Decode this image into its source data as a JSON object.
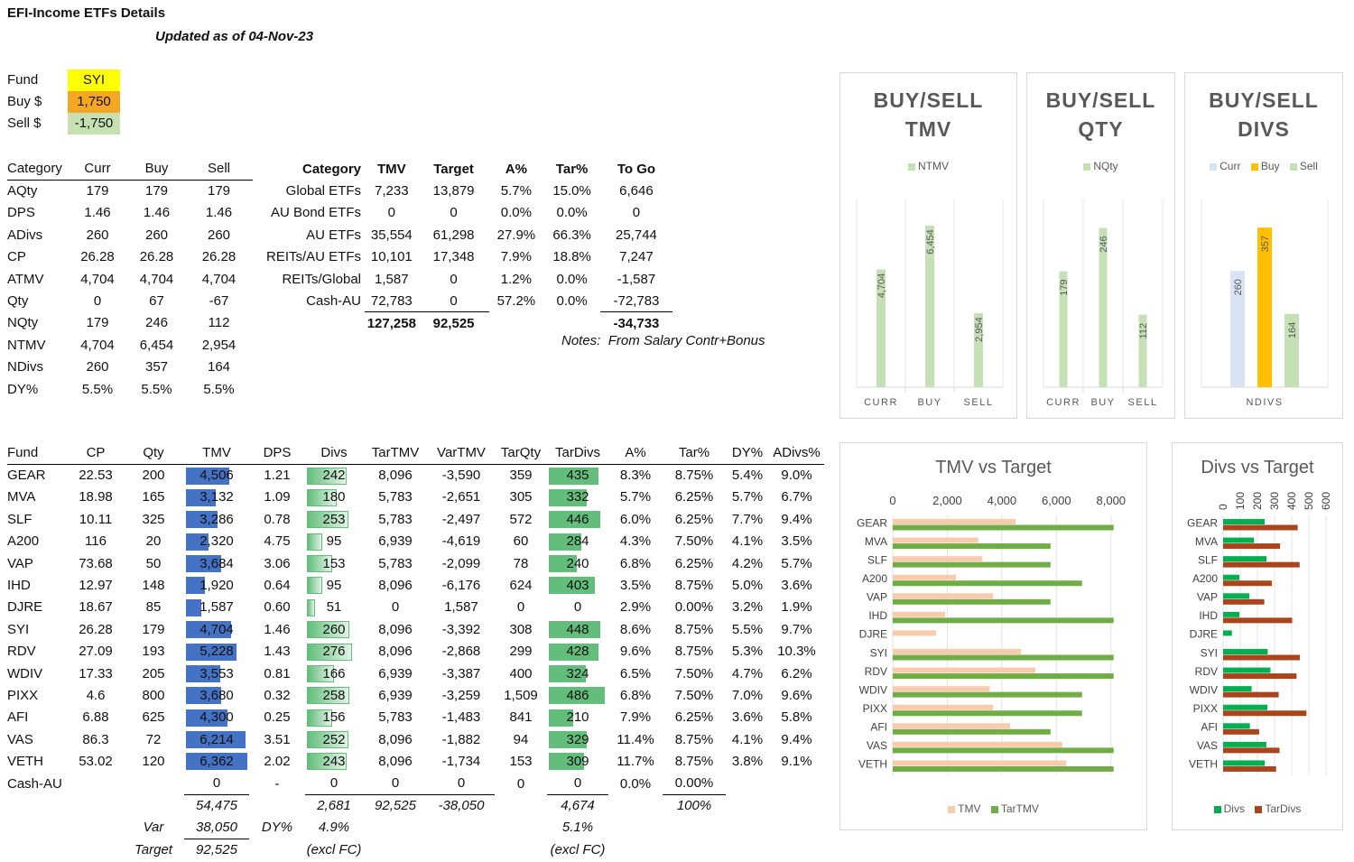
{
  "header": {
    "title": "EFI-Income ETFs Details",
    "updated": "Updated as of  04-Nov-23"
  },
  "selector": {
    "fund_label": "Fund",
    "fund_value": "SYI",
    "buy_label": "Buy $",
    "buy_value": "1,750",
    "sell_label": "Sell $",
    "sell_value": "-1,750",
    "colors": {
      "fund": "#ffff00",
      "buy": "#f5a623",
      "sell": "#c6e0b4"
    }
  },
  "category_table": {
    "headers": [
      "Category",
      "Curr",
      "Buy",
      "Sell"
    ],
    "rows": [
      [
        "AQty",
        "179",
        "179",
        "179"
      ],
      [
        "DPS",
        "1.46",
        "1.46",
        "1.46"
      ],
      [
        "ADivs",
        "260",
        "260",
        "260"
      ],
      [
        "CP",
        "26.28",
        "26.28",
        "26.28"
      ],
      [
        "ATMV",
        "4,704",
        "4,704",
        "4,704"
      ],
      [
        "Qty",
        "0",
        "67",
        "-67"
      ],
      [
        "NQty",
        "179",
        "246",
        "112"
      ],
      [
        "NTMV",
        "4,704",
        "6,454",
        "2,954"
      ],
      [
        "NDivs",
        "260",
        "357",
        "164"
      ],
      [
        "DY%",
        "5.5%",
        "5.5%",
        "5.5%"
      ]
    ]
  },
  "alloc_table": {
    "headers": [
      "Category",
      "TMV",
      "Target",
      "A%",
      "Tar%",
      "To Go"
    ],
    "rows": [
      [
        "Global ETFs",
        "7,233",
        "13,879",
        "5.7%",
        "15.0%",
        "6,646"
      ],
      [
        "AU Bond ETFs",
        "0",
        "0",
        "0.0%",
        "0.0%",
        "0"
      ],
      [
        "AU ETFs",
        "35,554",
        "61,298",
        "27.9%",
        "66.3%",
        "25,744"
      ],
      [
        "REITs/AU ETFs",
        "10,101",
        "17,348",
        "7.9%",
        "18.8%",
        "7,247"
      ],
      [
        "REITs/Global",
        "1,587",
        "0",
        "1.2%",
        "0.0%",
        "-1,587"
      ],
      [
        "Cash-AU",
        "72,783",
        "0",
        "57.2%",
        "0.0%",
        "-72,783"
      ]
    ],
    "totals": {
      "tmv": "127,258",
      "target": "92,525",
      "togo": "-34,733"
    },
    "notes_label": "Notes:",
    "notes_text": "From Salary Contr+Bonus"
  },
  "fund_table": {
    "headers": [
      "Fund",
      "CP",
      "Qty",
      "TMV",
      "DPS",
      "Divs",
      "TarTMV",
      "VarTMV",
      "TarQty",
      "TarDivs",
      "A%",
      "Tar%",
      "DY%",
      "ADivs%"
    ],
    "rows": [
      {
        "fund": "GEAR",
        "cp": "22.53",
        "qty": "200",
        "tmv": "4,506",
        "tmv_v": 4506,
        "dps": "1.21",
        "divs": "242",
        "divs_v": 242,
        "tartmv": "8,096",
        "vartmv": "-3,590",
        "tarqty": "359",
        "tardivs": "435",
        "tardivs_v": 435,
        "a": "8.3%",
        "tar": "8.75%",
        "dy": "5.4%",
        "adivs": "9.0%"
      },
      {
        "fund": "MVA",
        "cp": "18.98",
        "qty": "165",
        "tmv": "3,132",
        "tmv_v": 3132,
        "dps": "1.09",
        "divs": "180",
        "divs_v": 180,
        "tartmv": "5,783",
        "vartmv": "-2,651",
        "tarqty": "305",
        "tardivs": "332",
        "tardivs_v": 332,
        "a": "5.7%",
        "tar": "6.25%",
        "dy": "5.7%",
        "adivs": "6.7%"
      },
      {
        "fund": "SLF",
        "cp": "10.11",
        "qty": "325",
        "tmv": "3,286",
        "tmv_v": 3286,
        "dps": "0.78",
        "divs": "253",
        "divs_v": 253,
        "tartmv": "5,783",
        "vartmv": "-2,497",
        "tarqty": "572",
        "tardivs": "446",
        "tardivs_v": 446,
        "a": "6.0%",
        "tar": "6.25%",
        "dy": "7.7%",
        "adivs": "9.4%"
      },
      {
        "fund": "A200",
        "cp": "116",
        "qty": "20",
        "tmv": "2,320",
        "tmv_v": 2320,
        "dps": "4.75",
        "divs": "95",
        "divs_v": 95,
        "tartmv": "6,939",
        "vartmv": "-4,619",
        "tarqty": "60",
        "tardivs": "284",
        "tardivs_v": 284,
        "a": "4.3%",
        "tar": "7.50%",
        "dy": "4.1%",
        "adivs": "3.5%"
      },
      {
        "fund": "VAP",
        "cp": "73.68",
        "qty": "50",
        "tmv": "3,684",
        "tmv_v": 3684,
        "dps": "3.06",
        "divs": "153",
        "divs_v": 153,
        "tartmv": "5,783",
        "vartmv": "-2,099",
        "tarqty": "78",
        "tardivs": "240",
        "tardivs_v": 240,
        "a": "6.8%",
        "tar": "6.25%",
        "dy": "4.2%",
        "adivs": "5.7%"
      },
      {
        "fund": "IHD",
        "cp": "12.97",
        "qty": "148",
        "tmv": "1,920",
        "tmv_v": 1920,
        "dps": "0.64",
        "divs": "95",
        "divs_v": 95,
        "tartmv": "8,096",
        "vartmv": "-6,176",
        "tarqty": "624",
        "tardivs": "403",
        "tardivs_v": 403,
        "a": "3.5%",
        "tar": "8.75%",
        "dy": "5.0%",
        "adivs": "3.6%"
      },
      {
        "fund": "DJRE",
        "cp": "18.67",
        "qty": "85",
        "tmv": "1,587",
        "tmv_v": 1587,
        "dps": "0.60",
        "divs": "51",
        "divs_v": 51,
        "tartmv": "0",
        "vartmv": "1,587",
        "tarqty": "0",
        "tardivs": "0",
        "tardivs_v": 0,
        "a": "2.9%",
        "tar": "0.00%",
        "dy": "3.2%",
        "adivs": "1.9%"
      },
      {
        "fund": "SYI",
        "cp": "26.28",
        "qty": "179",
        "tmv": "4,704",
        "tmv_v": 4704,
        "dps": "1.46",
        "divs": "260",
        "divs_v": 260,
        "tartmv": "8,096",
        "vartmv": "-3,392",
        "tarqty": "308",
        "tardivs": "448",
        "tardivs_v": 448,
        "a": "8.6%",
        "tar": "8.75%",
        "dy": "5.5%",
        "adivs": "9.7%"
      },
      {
        "fund": "RDV",
        "cp": "27.09",
        "qty": "193",
        "tmv": "5,228",
        "tmv_v": 5228,
        "dps": "1.43",
        "divs": "276",
        "divs_v": 276,
        "tartmv": "8,096",
        "vartmv": "-2,868",
        "tarqty": "299",
        "tardivs": "428",
        "tardivs_v": 428,
        "a": "9.6%",
        "tar": "8.75%",
        "dy": "5.3%",
        "adivs": "10.3%"
      },
      {
        "fund": "WDIV",
        "cp": "17.33",
        "qty": "205",
        "tmv": "3,553",
        "tmv_v": 3553,
        "dps": "0.81",
        "divs": "166",
        "divs_v": 166,
        "tartmv": "6,939",
        "vartmv": "-3,387",
        "tarqty": "400",
        "tardivs": "324",
        "tardivs_v": 324,
        "a": "6.5%",
        "tar": "7.50%",
        "dy": "4.7%",
        "adivs": "6.2%"
      },
      {
        "fund": "PIXX",
        "cp": "4.6",
        "qty": "800",
        "tmv": "3,680",
        "tmv_v": 3680,
        "dps": "0.32",
        "divs": "258",
        "divs_v": 258,
        "tartmv": "6,939",
        "vartmv": "-3,259",
        "tarqty": "1,509",
        "tardivs": "486",
        "tardivs_v": 486,
        "a": "6.8%",
        "tar": "7.50%",
        "dy": "7.0%",
        "adivs": "9.6%"
      },
      {
        "fund": "AFI",
        "cp": "6.88",
        "qty": "625",
        "tmv": "4,300",
        "tmv_v": 4300,
        "dps": "0.25",
        "divs": "156",
        "divs_v": 156,
        "tartmv": "5,783",
        "vartmv": "-1,483",
        "tarqty": "841",
        "tardivs": "210",
        "tardivs_v": 210,
        "a": "7.9%",
        "tar": "6.25%",
        "dy": "3.6%",
        "adivs": "5.8%"
      },
      {
        "fund": "VAS",
        "cp": "86.3",
        "qty": "72",
        "tmv": "6,214",
        "tmv_v": 6214,
        "dps": "3.51",
        "divs": "252",
        "divs_v": 252,
        "tartmv": "8,096",
        "vartmv": "-1,882",
        "tarqty": "94",
        "tardivs": "329",
        "tardivs_v": 329,
        "a": "11.4%",
        "tar": "8.75%",
        "dy": "4.1%",
        "adivs": "9.4%"
      },
      {
        "fund": "VETH",
        "cp": "53.02",
        "qty": "120",
        "tmv": "6,362",
        "tmv_v": 6362,
        "dps": "2.02",
        "divs": "243",
        "divs_v": 243,
        "tartmv": "8,096",
        "vartmv": "-1,734",
        "tarqty": "153",
        "tardivs": "309",
        "tardivs_v": 309,
        "a": "11.7%",
        "tar": "8.75%",
        "dy": "3.8%",
        "adivs": "9.1%"
      },
      {
        "fund": "Cash-AU",
        "cp": "",
        "qty": "",
        "tmv": "0",
        "tmv_v": 0,
        "dps": "-",
        "divs": "0",
        "divs_v": 0,
        "tartmv": "0",
        "vartmv": "0",
        "tarqty": "0",
        "tardivs": "0",
        "tardivs_v": 0,
        "a": "0.0%",
        "tar": "0.00%",
        "dy": "",
        "adivs": ""
      }
    ],
    "totals": {
      "tmv": "54,475",
      "divs": "2,681",
      "tartmv": "92,525",
      "vartmv": "-38,050",
      "tardivs": "4,674",
      "tar": "100%"
    },
    "var_row": {
      "label": "Var",
      "tmv": "38,050",
      "dy_label": "DY%",
      "divs_dy": "4.9%",
      "tardivs_dy": "5.1%"
    },
    "target_row": {
      "label": "Target",
      "tmv": "92,525",
      "divs_note": "(excl FC)",
      "tardivs_note": "(excl FC)"
    }
  },
  "chart_data": [
    {
      "type": "bar",
      "title": "BUY/SELL TMV",
      "categories": [
        "CURR",
        "BUY",
        "SELL"
      ],
      "series": [
        {
          "name": "NTMV",
          "values": [
            4704,
            6454,
            2954
          ],
          "color": "#c5e0b4"
        }
      ],
      "value_labels": [
        "4,704",
        "6,454",
        "2,954"
      ],
      "ylim": [
        0,
        7500
      ]
    },
    {
      "type": "bar",
      "title": "BUY/SELL QTY",
      "categories": [
        "CURR",
        "BUY",
        "SELL"
      ],
      "series": [
        {
          "name": "NQty",
          "values": [
            179,
            246,
            112
          ],
          "color": "#c5e0b4"
        }
      ],
      "value_labels": [
        "179",
        "246",
        "112"
      ],
      "ylim": [
        0,
        290
      ]
    },
    {
      "type": "bar",
      "title": "BUY/SELL DIVS",
      "categories": [
        "NDIVS"
      ],
      "series": [
        {
          "name": "Curr",
          "values": [
            260
          ],
          "color": "#dae3f3"
        },
        {
          "name": "Buy",
          "values": [
            357
          ],
          "color": "#ffc000"
        },
        {
          "name": "Sell",
          "values": [
            164
          ],
          "color": "#c5e0b4"
        }
      ],
      "value_labels": [
        "260",
        "357",
        "164"
      ],
      "ylim": [
        0,
        420
      ]
    },
    {
      "type": "bar",
      "orientation": "horizontal",
      "title": "TMV vs Target",
      "categories": [
        "GEAR",
        "MVA",
        "SLF",
        "A200",
        "VAP",
        "IHD",
        "DJRE",
        "SYI",
        "RDV",
        "WDIV",
        "PIXX",
        "AFI",
        "VAS",
        "VETH"
      ],
      "series": [
        {
          "name": "TMV",
          "values": [
            4506,
            3132,
            3286,
            2320,
            3684,
            1920,
            1587,
            4704,
            5228,
            3553,
            3680,
            4300,
            6214,
            6362
          ],
          "color": "#f8cbad"
        },
        {
          "name": "TarTMV",
          "values": [
            8096,
            5783,
            5783,
            6939,
            5783,
            8096,
            0,
            8096,
            8096,
            6939,
            6939,
            5783,
            8096,
            8096
          ],
          "color": "#70ad47"
        }
      ],
      "xticks": [
        "0",
        "2,000",
        "4,000",
        "6,000",
        "8,000"
      ],
      "xlim": [
        0,
        9000
      ]
    },
    {
      "type": "bar",
      "orientation": "horizontal",
      "title": "Divs vs Target",
      "categories": [
        "GEAR",
        "MVA",
        "SLF",
        "A200",
        "VAP",
        "IHD",
        "DJRE",
        "SYI",
        "RDV",
        "WDIV",
        "PIXX",
        "AFI",
        "VAS",
        "VETH"
      ],
      "series": [
        {
          "name": "Divs",
          "values": [
            242,
            180,
            253,
            95,
            153,
            95,
            51,
            260,
            276,
            166,
            258,
            156,
            252,
            243
          ],
          "color": "#00b050"
        },
        {
          "name": "TarDivs",
          "values": [
            435,
            332,
            446,
            284,
            240,
            403,
            0,
            448,
            428,
            324,
            486,
            210,
            329,
            309
          ],
          "color": "#a9441b"
        }
      ],
      "xticks": [
        "0",
        "100",
        "200",
        "300",
        "400",
        "500",
        "600"
      ],
      "xlim": [
        0,
        600
      ]
    }
  ]
}
